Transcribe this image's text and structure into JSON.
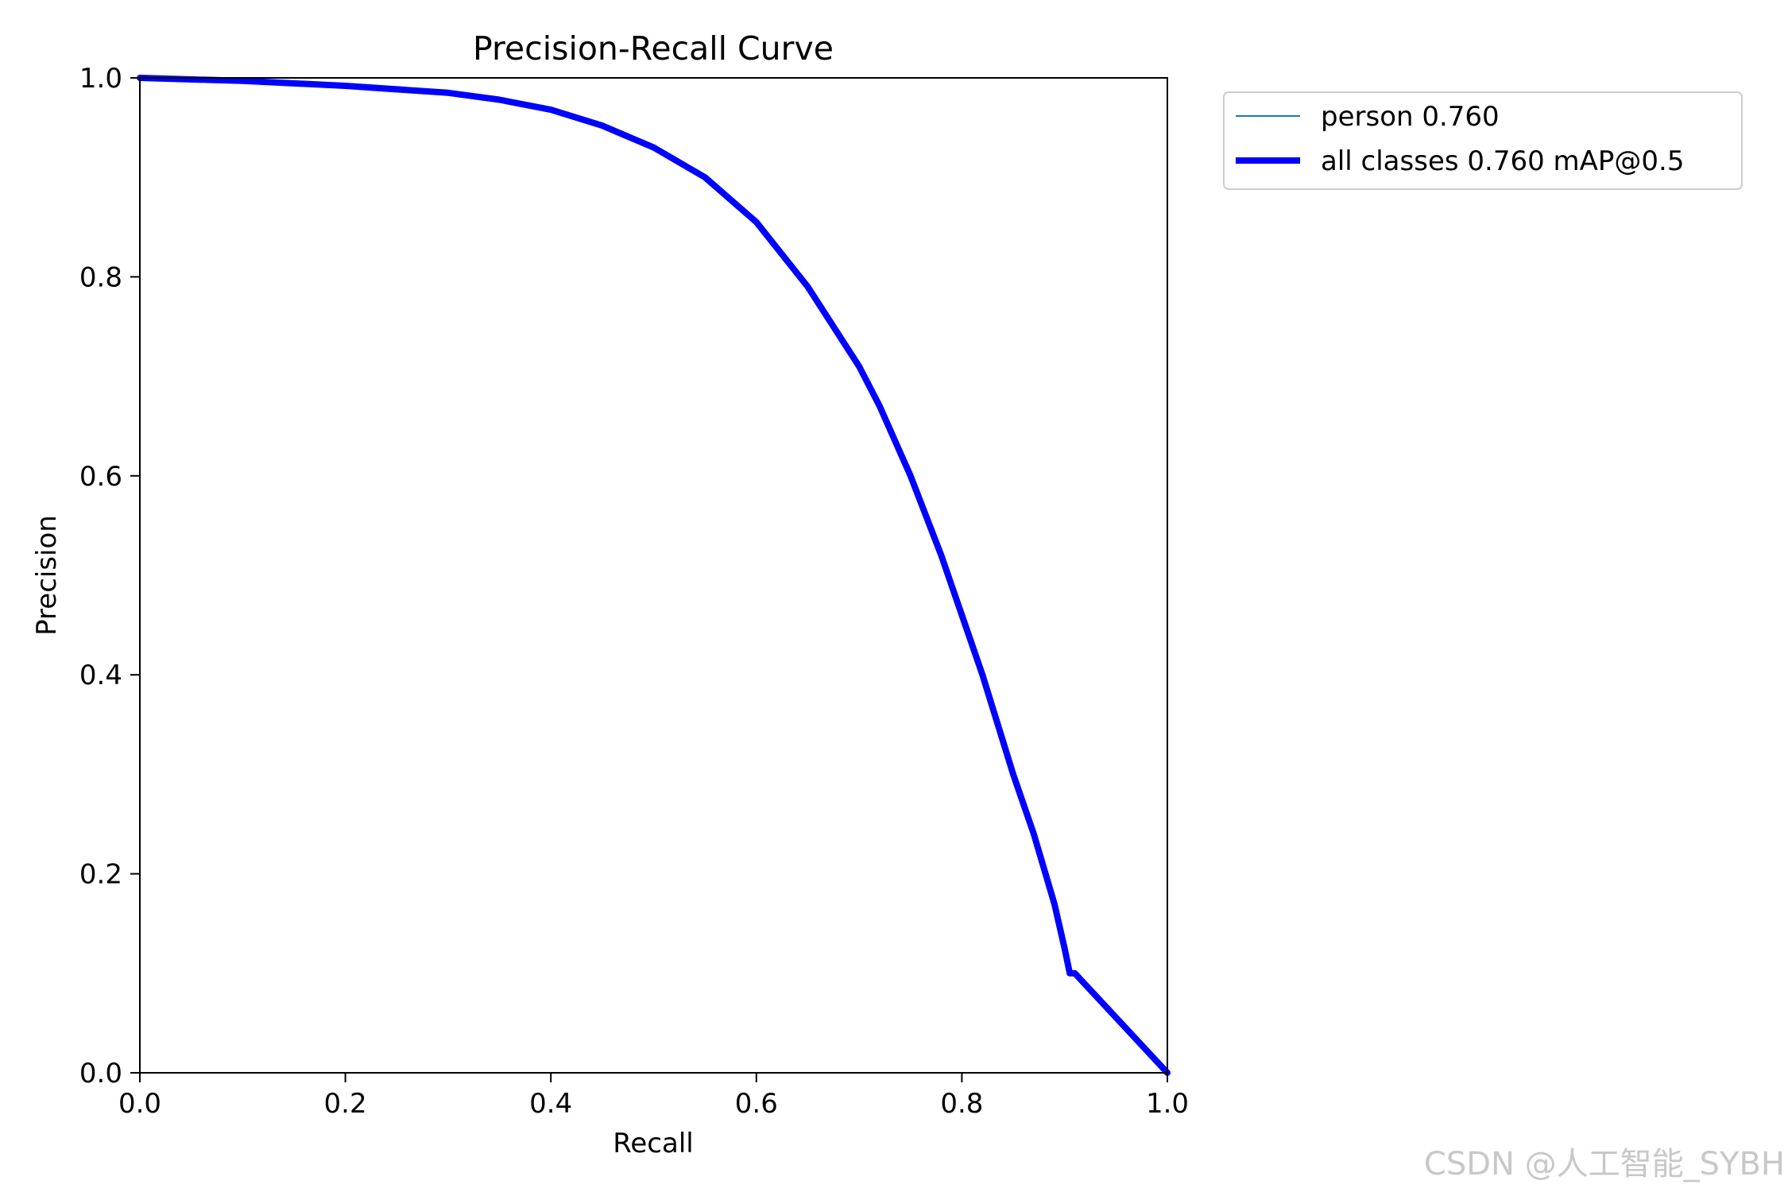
{
  "chart_data": {
    "type": "line",
    "title": "Precision-Recall Curve",
    "xlabel": "Recall",
    "ylabel": "Precision",
    "xlim": [
      0,
      1
    ],
    "ylim": [
      0,
      1
    ],
    "xticks": [
      "0.0",
      "0.2",
      "0.4",
      "0.6",
      "0.8",
      "1.0"
    ],
    "yticks": [
      "0.0",
      "0.2",
      "0.4",
      "0.6",
      "0.8",
      "1.0"
    ],
    "grid": false,
    "legend_position": "outside-top-right",
    "series": [
      {
        "name": "person 0.760",
        "color": "#1f77b4",
        "style": "thin",
        "x": [
          0.0,
          0.1,
          0.2,
          0.3,
          0.35,
          0.4,
          0.45,
          0.5,
          0.55,
          0.6,
          0.65,
          0.7,
          0.72,
          0.75,
          0.78,
          0.8,
          0.82,
          0.85,
          0.87,
          0.89,
          0.9,
          0.905,
          0.91,
          1.0
        ],
        "y": [
          1.0,
          0.997,
          0.992,
          0.985,
          0.978,
          0.968,
          0.952,
          0.93,
          0.9,
          0.855,
          0.79,
          0.71,
          0.67,
          0.6,
          0.52,
          0.46,
          0.4,
          0.3,
          0.24,
          0.17,
          0.125,
          0.1,
          0.1,
          0.0
        ]
      },
      {
        "name": "all classes 0.760 mAP@0.5",
        "color": "#0000ff",
        "style": "thick",
        "x": [
          0.0,
          0.1,
          0.2,
          0.3,
          0.35,
          0.4,
          0.45,
          0.5,
          0.55,
          0.6,
          0.65,
          0.7,
          0.72,
          0.75,
          0.78,
          0.8,
          0.82,
          0.85,
          0.87,
          0.89,
          0.9,
          0.905,
          0.91,
          1.0
        ],
        "y": [
          1.0,
          0.997,
          0.992,
          0.985,
          0.978,
          0.968,
          0.952,
          0.93,
          0.9,
          0.855,
          0.79,
          0.71,
          0.67,
          0.6,
          0.52,
          0.46,
          0.4,
          0.3,
          0.24,
          0.17,
          0.125,
          0.1,
          0.1,
          0.0
        ]
      }
    ]
  },
  "watermark": "CSDN @人工智能_SYBH"
}
